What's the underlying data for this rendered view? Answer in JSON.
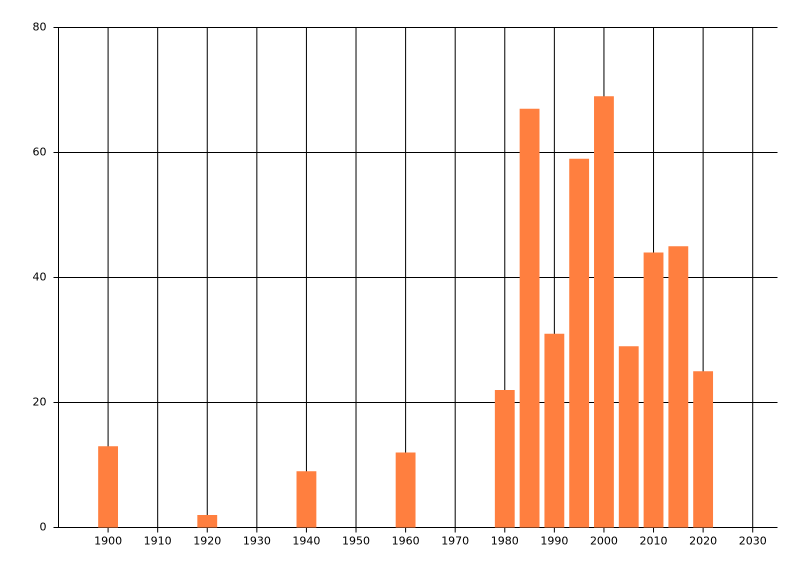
{
  "chart_data": {
    "type": "bar",
    "x": [
      1900,
      1920,
      1940,
      1960,
      1980,
      1985,
      1990,
      1995,
      2000,
      2005,
      2010,
      2015,
      2020
    ],
    "values": [
      13,
      2,
      9,
      12,
      22,
      67,
      31,
      59,
      69,
      29,
      44,
      45,
      25
    ],
    "color": "#ff7f3f",
    "xlim": [
      1890,
      2035
    ],
    "xticks": [
      1900,
      1910,
      1920,
      1930,
      1940,
      1950,
      1960,
      1970,
      1980,
      1990,
      2000,
      2010,
      2020,
      2030
    ],
    "ylim": [
      0,
      80
    ],
    "yticks": [
      0,
      20,
      40,
      60,
      80
    ],
    "grid": true
  }
}
